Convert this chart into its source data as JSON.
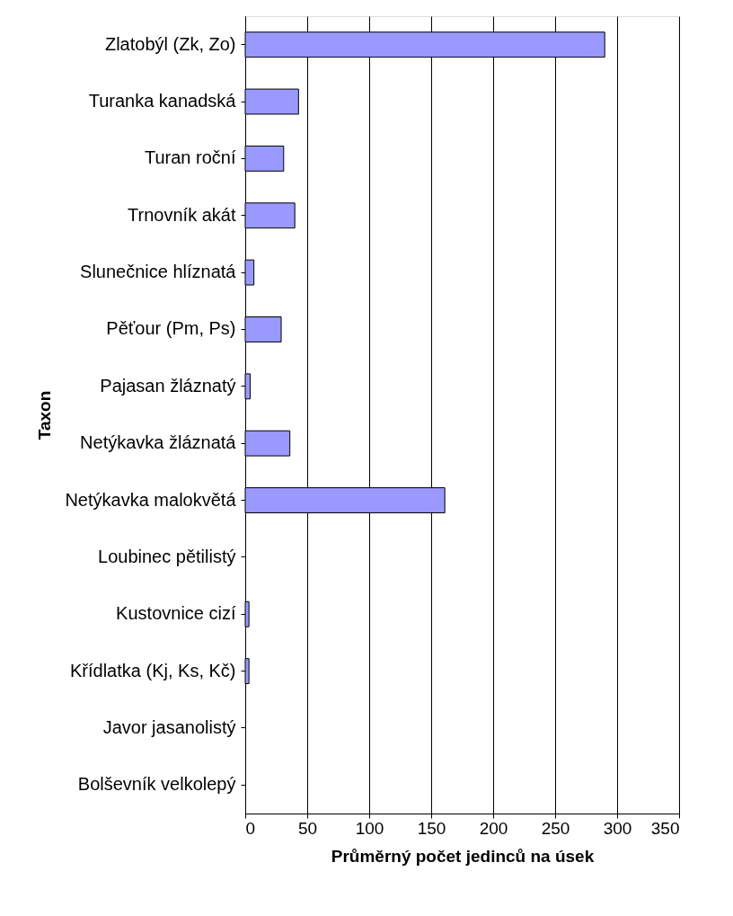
{
  "chart_data": {
    "type": "bar",
    "orientation": "horizontal",
    "xlabel": "Průměrný počet jedinců na úsek",
    "ylabel": "Taxon",
    "categories": [
      "Zlatobýl (Zk, Zo)",
      "Turanka kanadská",
      "Turan roční",
      "Trnovník akát",
      "Slunečnice hlíznatá",
      "Pěťour (Pm, Ps)",
      "Pajasan žláznatý",
      "Netýkavka žláznatá",
      "Netýkavka malokvětá",
      "Loubinec pětilistý",
      "Kustovnice cizí",
      "Křídlatka (Kj, Ks, Kč)",
      "Javor jasanolistý",
      "Bolševník velkolepý"
    ],
    "values": [
      290,
      43,
      31,
      40,
      7,
      29,
      4,
      36,
      161,
      0,
      3,
      3,
      0,
      0
    ],
    "color": "#9999ff",
    "xlim": [
      0,
      350
    ],
    "xticks": [
      0,
      50,
      100,
      150,
      200,
      250,
      300,
      350
    ],
    "grid": "x"
  }
}
